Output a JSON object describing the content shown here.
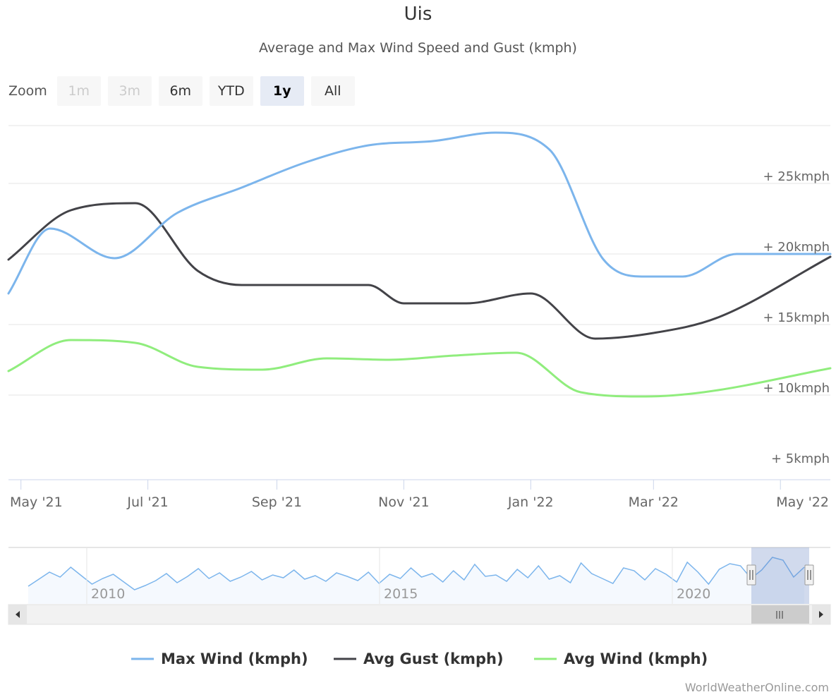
{
  "chart_data": {
    "type": "line",
    "title": "Uis",
    "subtitle": "Average and Max Wind Speed and Gust (kmph)",
    "zoom": {
      "label": "Zoom",
      "buttons": [
        {
          "label": "1m",
          "state": "disabled"
        },
        {
          "label": "3m",
          "state": "disabled"
        },
        {
          "label": "6m",
          "state": "normal"
        },
        {
          "label": "YTD",
          "state": "normal"
        },
        {
          "label": "1y",
          "state": "selected"
        },
        {
          "label": "All",
          "state": "normal"
        }
      ]
    },
    "x_range": [
      "2021-04-25",
      "2022-05-25"
    ],
    "x_ticks": [
      {
        "date": "2021-05-01",
        "label": "May '21"
      },
      {
        "date": "2021-07-01",
        "label": "Jul '21"
      },
      {
        "date": "2021-09-01",
        "label": "Sep '21"
      },
      {
        "date": "2021-11-01",
        "label": "Nov '21"
      },
      {
        "date": "2022-01-01",
        "label": "Jan '22"
      },
      {
        "date": "2022-03-01",
        "label": "Mar '22"
      },
      {
        "date": "2022-05-01",
        "label": "May '22"
      }
    ],
    "ylim": [
      4,
      29
    ],
    "y_ticks": [
      {
        "value": 5,
        "label": "+ 5kmph"
      },
      {
        "value": 10,
        "label": "+ 10kmph"
      },
      {
        "value": 15,
        "label": "+ 15kmph"
      },
      {
        "value": 20,
        "label": "+ 20kmph"
      },
      {
        "value": 25,
        "label": "+ 25kmph"
      }
    ],
    "grid": true,
    "series": [
      {
        "name": "Max Wind (kmph)",
        "color": "#7cb5ec",
        "points": [
          [
            "2021-04-25",
            17.2
          ],
          [
            "2021-05-15",
            21.8
          ],
          [
            "2021-06-15",
            19.7
          ],
          [
            "2021-07-15",
            22.9
          ],
          [
            "2021-08-15",
            24.7
          ],
          [
            "2021-09-15",
            26.5
          ],
          [
            "2021-10-15",
            27.7
          ],
          [
            "2021-11-15",
            28.0
          ],
          [
            "2021-12-15",
            28.6
          ],
          [
            "2022-01-10",
            27.4
          ],
          [
            "2022-02-05",
            19.6
          ],
          [
            "2022-02-25",
            18.4
          ],
          [
            "2022-03-15",
            18.4
          ],
          [
            "2022-04-10",
            20.0
          ],
          [
            "2022-05-25",
            20.0
          ]
        ]
      },
      {
        "name": "Avg Gust (kmph)",
        "color": "#434348",
        "points": [
          [
            "2021-04-25",
            19.6
          ],
          [
            "2021-05-25",
            23.1
          ],
          [
            "2021-06-25",
            23.6
          ],
          [
            "2021-07-25",
            18.8
          ],
          [
            "2021-08-15",
            17.8
          ],
          [
            "2021-09-15",
            17.8
          ],
          [
            "2021-10-15",
            17.8
          ],
          [
            "2021-11-01",
            16.5
          ],
          [
            "2021-12-01",
            16.5
          ],
          [
            "2022-01-01",
            17.2
          ],
          [
            "2022-02-01",
            14.0
          ],
          [
            "2022-03-01",
            14.4
          ],
          [
            "2022-04-01",
            15.5
          ],
          [
            "2022-05-25",
            19.8
          ]
        ]
      },
      {
        "name": "Avg Wind (kmph)",
        "color": "#90ed7d",
        "points": [
          [
            "2021-04-25",
            11.7
          ],
          [
            "2021-05-25",
            13.9
          ],
          [
            "2021-06-25",
            13.7
          ],
          [
            "2021-07-25",
            12.0
          ],
          [
            "2021-08-25",
            11.8
          ],
          [
            "2021-09-25",
            12.6
          ],
          [
            "2021-10-25",
            12.5
          ],
          [
            "2021-11-25",
            12.8
          ],
          [
            "2021-12-25",
            13.0
          ],
          [
            "2022-01-25",
            10.2
          ],
          [
            "2022-02-25",
            9.9
          ],
          [
            "2022-03-25",
            10.2
          ],
          [
            "2022-05-25",
            11.9
          ]
        ]
      }
    ],
    "navigator": {
      "labels": [
        "2010",
        "2015",
        "2020"
      ],
      "values": [
        11.5,
        12.5,
        13.5,
        12.8,
        14.2,
        13.0,
        11.8,
        12.6,
        13.2,
        12.1,
        11.0,
        11.6,
        12.3,
        13.3,
        12.0,
        12.9,
        14.0,
        12.6,
        13.4,
        12.2,
        12.8,
        13.6,
        12.4,
        13.1,
        12.7,
        13.8,
        12.5,
        13.0,
        12.2,
        13.4,
        12.9,
        12.3,
        13.5,
        11.9,
        13.2,
        12.6,
        14.1,
        12.8,
        13.3,
        12.1,
        13.7,
        12.4,
        14.6,
        12.9,
        13.1,
        12.2,
        13.9,
        12.7,
        14.4,
        12.5,
        13.0,
        12.0,
        14.8,
        13.3,
        12.6,
        11.9,
        14.1,
        13.7,
        12.4,
        14.0,
        13.2,
        12.1,
        14.9,
        13.5,
        11.8,
        13.9,
        14.7,
        14.4,
        12.6,
        13.8,
        15.6,
        15.2,
        12.8,
        14.2
      ]
    },
    "legend": {
      "position": "bottom",
      "items": [
        "Max Wind (kmph)",
        "Avg Gust (kmph)",
        "Avg Wind (kmph)"
      ]
    },
    "credit": "WorldWeatherOnline.com"
  }
}
